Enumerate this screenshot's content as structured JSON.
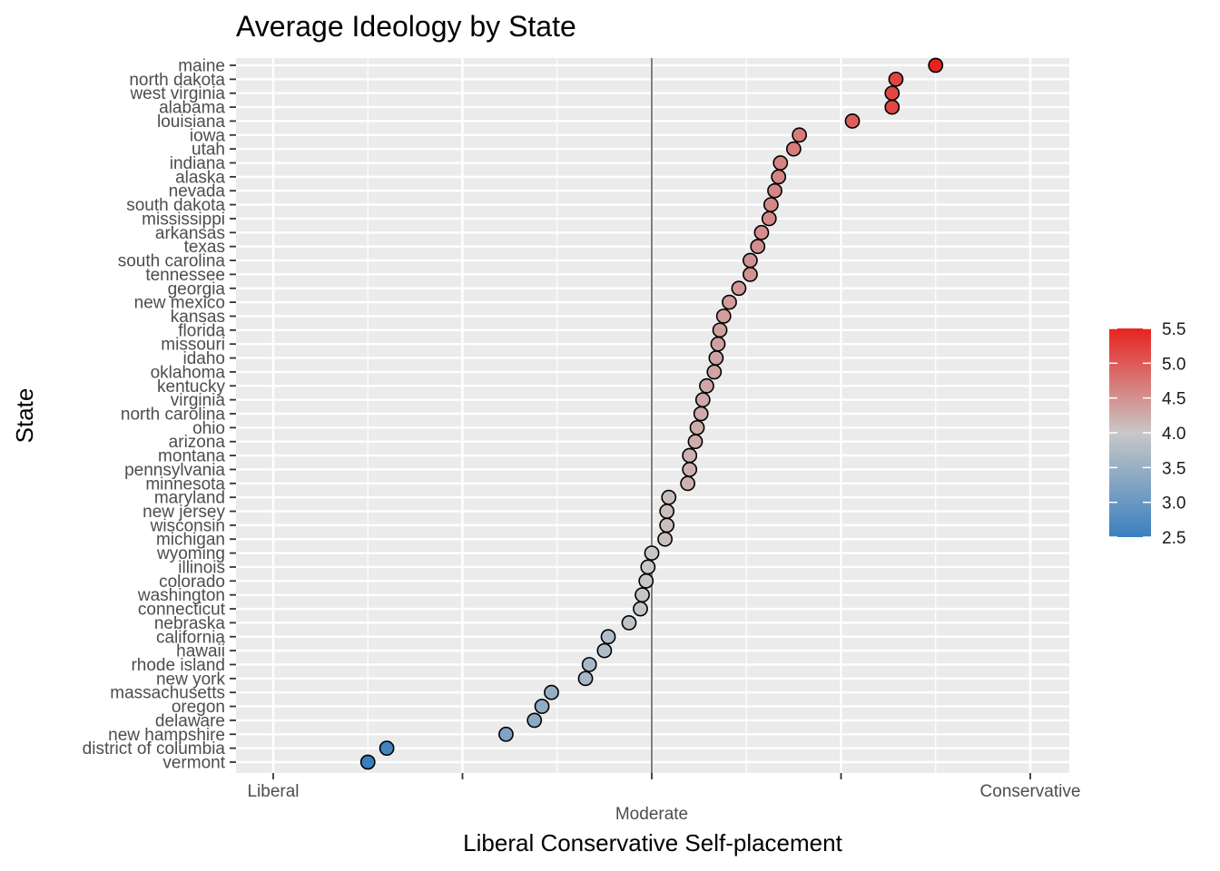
{
  "chart_data": {
    "type": "scatter",
    "title": "Average Ideology by State",
    "xlabel": "Liberal Conservative Self-placement",
    "ylabel": "State",
    "xlim": [
      -2.1,
      2.2
    ],
    "x_ticks": [
      {
        "value": -2,
        "label": "Liberal"
      },
      {
        "value": -1,
        "label": ""
      },
      {
        "value": 0,
        "label": "Moderate"
      },
      {
        "value": 1,
        "label": ""
      },
      {
        "value": 2,
        "label": "Conservative"
      }
    ],
    "reference_line_x": 0,
    "grid": true,
    "color_scale": {
      "low_color": "#3a7fbf",
      "mid_color": "#c8c8c8",
      "high_color": "#e8231f",
      "range": [
        2.5,
        5.5
      ],
      "mid": 4.0,
      "breaks": [
        "5.5",
        "5.0",
        "4.5",
        "4.0",
        "3.5",
        "3.0",
        "2.5"
      ],
      "legend_position": "right"
    },
    "points": [
      {
        "state": "maine",
        "x": 1.5,
        "color_value": 5.5
      },
      {
        "state": "north dakota",
        "x": 1.29,
        "color_value": 5.2
      },
      {
        "state": "west virginia",
        "x": 1.27,
        "color_value": 5.18
      },
      {
        "state": "alabama",
        "x": 1.27,
        "color_value": 5.17
      },
      {
        "state": "louisiana",
        "x": 1.06,
        "color_value": 4.95
      },
      {
        "state": "iowa",
        "x": 0.78,
        "color_value": 4.7
      },
      {
        "state": "utah",
        "x": 0.75,
        "color_value": 4.68
      },
      {
        "state": "indiana",
        "x": 0.68,
        "color_value": 4.62
      },
      {
        "state": "alaska",
        "x": 0.67,
        "color_value": 4.61
      },
      {
        "state": "nevada",
        "x": 0.65,
        "color_value": 4.6
      },
      {
        "state": "south dakota",
        "x": 0.63,
        "color_value": 4.58
      },
      {
        "state": "mississippi",
        "x": 0.62,
        "color_value": 4.57
      },
      {
        "state": "arkansas",
        "x": 0.58,
        "color_value": 4.54
      },
      {
        "state": "texas",
        "x": 0.56,
        "color_value": 4.52
      },
      {
        "state": "south carolina",
        "x": 0.52,
        "color_value": 4.49
      },
      {
        "state": "tennessee",
        "x": 0.52,
        "color_value": 4.49
      },
      {
        "state": "georgia",
        "x": 0.46,
        "color_value": 4.44
      },
      {
        "state": "new mexico",
        "x": 0.41,
        "color_value": 4.4
      },
      {
        "state": "kansas",
        "x": 0.38,
        "color_value": 4.38
      },
      {
        "state": "florida",
        "x": 0.36,
        "color_value": 4.36
      },
      {
        "state": "missouri",
        "x": 0.35,
        "color_value": 4.35
      },
      {
        "state": "idaho",
        "x": 0.34,
        "color_value": 4.34
      },
      {
        "state": "oklahoma",
        "x": 0.33,
        "color_value": 4.33
      },
      {
        "state": "kentucky",
        "x": 0.29,
        "color_value": 4.3
      },
      {
        "state": "virginia",
        "x": 0.27,
        "color_value": 4.28
      },
      {
        "state": "north carolina",
        "x": 0.26,
        "color_value": 4.27
      },
      {
        "state": "ohio",
        "x": 0.24,
        "color_value": 4.25
      },
      {
        "state": "arizona",
        "x": 0.23,
        "color_value": 4.24
      },
      {
        "state": "montana",
        "x": 0.2,
        "color_value": 4.21
      },
      {
        "state": "pennsylvania",
        "x": 0.2,
        "color_value": 4.21
      },
      {
        "state": "minnesota",
        "x": 0.19,
        "color_value": 4.2
      },
      {
        "state": "maryland",
        "x": 0.09,
        "color_value": 4.1
      },
      {
        "state": "new jersey",
        "x": 0.08,
        "color_value": 4.09
      },
      {
        "state": "wisconsin",
        "x": 0.08,
        "color_value": 4.09
      },
      {
        "state": "michigan",
        "x": 0.07,
        "color_value": 4.08
      },
      {
        "state": "wyoming",
        "x": 0.0,
        "color_value": 4.0
      },
      {
        "state": "illinois",
        "x": -0.02,
        "color_value": 3.98
      },
      {
        "state": "colorado",
        "x": -0.03,
        "color_value": 3.97
      },
      {
        "state": "washington",
        "x": -0.05,
        "color_value": 3.95
      },
      {
        "state": "connecticut",
        "x": -0.06,
        "color_value": 3.94
      },
      {
        "state": "nebraska",
        "x": -0.12,
        "color_value": 3.88
      },
      {
        "state": "california",
        "x": -0.23,
        "color_value": 3.77
      },
      {
        "state": "hawaii",
        "x": -0.25,
        "color_value": 3.75
      },
      {
        "state": "rhode island",
        "x": -0.33,
        "color_value": 3.67
      },
      {
        "state": "new york",
        "x": -0.35,
        "color_value": 3.65
      },
      {
        "state": "massachusetts",
        "x": -0.53,
        "color_value": 3.47
      },
      {
        "state": "oregon",
        "x": -0.58,
        "color_value": 3.42
      },
      {
        "state": "delaware",
        "x": -0.62,
        "color_value": 3.38
      },
      {
        "state": "new hampshire",
        "x": -0.77,
        "color_value": 3.23
      },
      {
        "state": "district of columbia",
        "x": -1.4,
        "color_value": 2.6
      },
      {
        "state": "vermont",
        "x": -1.5,
        "color_value": 2.5
      }
    ]
  }
}
